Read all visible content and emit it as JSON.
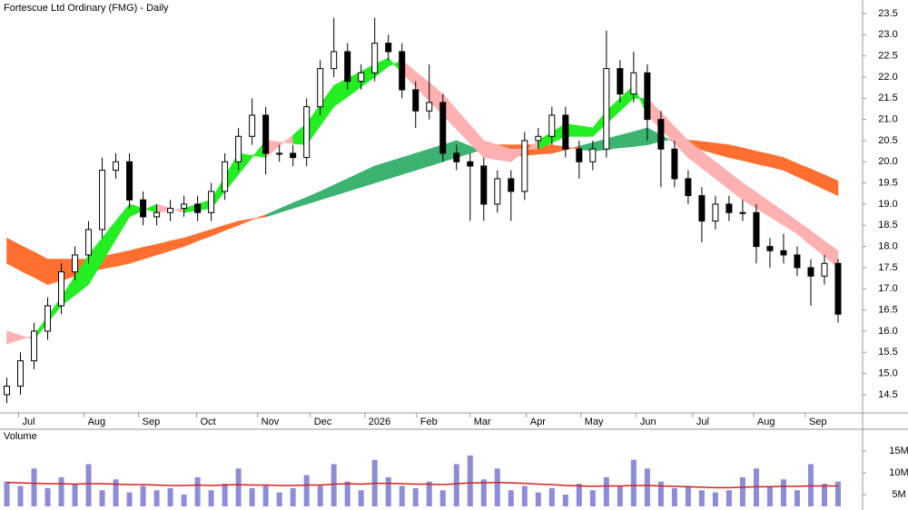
{
  "chart_data": {
    "type": "candlestick",
    "title": "Fortescue Ltd Ordinary (FMG) - Daily",
    "xlim": [
      -0.5,
      62.8
    ],
    "xticks": [
      {
        "value": 0.87,
        "label": "Jul"
      },
      {
        "value": 5.67,
        "label": "Aug"
      },
      {
        "value": 9.67,
        "label": "Sep"
      },
      {
        "value": 13.93,
        "label": "Oct"
      },
      {
        "value": 18.4,
        "label": "Nov"
      },
      {
        "value": 22.27,
        "label": "Dec"
      },
      {
        "value": 26.27,
        "label": "2026"
      },
      {
        "value": 30.07,
        "label": "Feb"
      },
      {
        "value": 34,
        "label": "Mar"
      },
      {
        "value": 38.13,
        "label": "Apr"
      },
      {
        "value": 42.13,
        "label": "May"
      },
      {
        "value": 46.2,
        "label": "Jun"
      },
      {
        "value": 50.33,
        "label": "Jul"
      },
      {
        "value": 54.8,
        "label": "Aug"
      },
      {
        "value": 58.6,
        "label": "Sep"
      }
    ],
    "ylim": [
      14.07,
      23.82
    ],
    "yticks": [
      14.5,
      {
        "value": 15,
        "label": "15.0"
      },
      15.5,
      {
        "value": 16,
        "label": "16.0"
      },
      16.5,
      {
        "value": 17,
        "label": "17.0"
      },
      17.5,
      {
        "value": 18,
        "label": "18.0"
      },
      18.5,
      {
        "value": 19,
        "label": "19.0"
      },
      19.5,
      {
        "value": 20,
        "label": "20.0"
      },
      20.5,
      {
        "value": 21,
        "label": "21.0"
      },
      21.5,
      {
        "value": 22,
        "label": "22.0"
      },
      22.5,
      {
        "value": 23,
        "label": "23.0"
      },
      23.5
    ],
    "open": [
      14.5,
      14.7,
      15.3,
      16.0,
      16.6,
      17.4,
      17.8,
      18.4,
      19.8,
      20.0,
      19.1,
      18.7,
      18.8,
      18.9,
      19.0,
      18.8,
      19.3,
      20.0,
      20.6,
      21.1,
      20.2,
      20.2,
      20.1,
      21.3,
      22.2,
      22.6,
      21.9,
      22.1,
      22.8,
      22.6,
      21.7,
      21.2,
      21.4,
      20.2,
      20.0,
      19.9,
      19.0,
      19.6,
      19.3,
      20.5,
      20.6,
      21.1,
      20.3,
      20.0,
      20.3,
      22.2,
      21.6,
      22.1,
      21.0,
      20.3,
      19.6,
      19.2,
      18.6,
      19.0,
      18.8,
      18.8,
      18.0,
      17.9,
      17.8,
      17.5,
      17.3,
      17.6
    ],
    "high": [
      14.9,
      15.5,
      16.2,
      16.8,
      17.6,
      18.0,
      18.6,
      20.1,
      20.2,
      20.2,
      19.3,
      19.0,
      19.1,
      19.2,
      19.2,
      19.5,
      20.2,
      20.8,
      21.5,
      21.3,
      20.4,
      20.4,
      21.5,
      22.4,
      23.4,
      22.8,
      22.3,
      23.4,
      23.0,
      22.8,
      21.9,
      22.3,
      21.6,
      20.4,
      20.2,
      20.1,
      19.8,
      19.8,
      20.7,
      20.8,
      21.3,
      21.3,
      20.5,
      20.5,
      23.1,
      22.4,
      22.6,
      22.3,
      21.2,
      20.5,
      19.8,
      19.4,
      19.2,
      19.2,
      19.1,
      19.0,
      18.2,
      18.3,
      18.0,
      17.7,
      17.8,
      17.7
    ],
    "low": [
      14.3,
      14.5,
      15.1,
      15.8,
      16.4,
      17.2,
      17.6,
      18.2,
      19.6,
      18.9,
      18.5,
      18.5,
      18.6,
      18.7,
      18.6,
      18.6,
      19.1,
      19.8,
      20.4,
      19.7,
      20.0,
      19.9,
      19.9,
      21.1,
      22.0,
      21.7,
      21.7,
      21.9,
      22.4,
      21.5,
      20.8,
      21.0,
      20.0,
      19.8,
      18.6,
      18.6,
      18.8,
      18.6,
      19.1,
      20.3,
      20.4,
      20.1,
      19.6,
      19.8,
      20.1,
      21.4,
      21.4,
      20.5,
      19.4,
      19.4,
      19.0,
      18.1,
      18.4,
      18.6,
      18.6,
      17.6,
      17.5,
      17.6,
      17.3,
      16.6,
      17.1,
      16.2
    ],
    "close": [
      14.7,
      15.3,
      16.0,
      16.6,
      17.4,
      17.8,
      18.4,
      19.8,
      20.0,
      19.1,
      18.7,
      18.8,
      18.9,
      19.0,
      18.8,
      19.3,
      20.0,
      20.6,
      21.1,
      20.2,
      20.2,
      20.1,
      21.3,
      22.2,
      22.6,
      21.9,
      22.1,
      22.8,
      22.6,
      21.7,
      21.2,
      21.4,
      20.2,
      20.0,
      19.9,
      19.0,
      19.6,
      19.3,
      20.5,
      20.6,
      21.1,
      20.3,
      20.0,
      20.3,
      22.2,
      21.6,
      22.1,
      21.0,
      20.3,
      19.6,
      19.2,
      18.6,
      19.0,
      18.8,
      18.8,
      18.0,
      17.9,
      17.8,
      17.5,
      17.3,
      17.6,
      16.4
    ],
    "up_color": "#ffffff",
    "down_color": "#000000",
    "ribbons": [
      {
        "fast": [
          17.6,
          17.43,
          17.27,
          17.1,
          17.2,
          17.3,
          17.4,
          17.47,
          17.53,
          17.6,
          17.7,
          17.8,
          17.9,
          18.0,
          18.13,
          18.25,
          18.38,
          18.5,
          18.63,
          18.75,
          18.89,
          19.03,
          19.16,
          19.3,
          19.45,
          19.6,
          19.75,
          19.9,
          20.0,
          20.1,
          20.2,
          20.3,
          20.4,
          20.5,
          20.37,
          20.23,
          20.1,
          20.13,
          20.15,
          20.18,
          20.2,
          20.28,
          20.37,
          20.45,
          20.54,
          20.63,
          20.71,
          20.8,
          20.63,
          20.45,
          20.36,
          20.28,
          20.19,
          20.1,
          20.03,
          19.95,
          19.88,
          19.8,
          19.65,
          19.5,
          19.35,
          19.2
        ],
        "slow": [
          18.2,
          18.03,
          17.87,
          17.7,
          17.7,
          17.7,
          17.7,
          17.77,
          17.83,
          17.9,
          17.98,
          18.05,
          18.13,
          18.2,
          18.3,
          18.4,
          18.5,
          18.6,
          18.65,
          18.7,
          18.8,
          18.9,
          19.0,
          19.1,
          19.2,
          19.3,
          19.4,
          19.5,
          19.6,
          19.7,
          19.8,
          19.9,
          20.0,
          20.1,
          20.2,
          20.3,
          20.4,
          20.4,
          20.4,
          20.4,
          20.4,
          20.35,
          20.3,
          20.25,
          20.29,
          20.33,
          20.36,
          20.4,
          20.48,
          20.55,
          20.51,
          20.48,
          20.44,
          20.4,
          20.33,
          20.25,
          20.18,
          20.1,
          19.96,
          19.83,
          19.69,
          19.55
        ],
        "up_color": "#3cb371",
        "down_color": "#ff7030"
      },
      {
        "fast": [
          15.7,
          15.8,
          15.9,
          16.35,
          16.8,
          17.3,
          17.8,
          18.2,
          18.6,
          19.0,
          18.9,
          18.8,
          18.85,
          18.9,
          19.0,
          19.1,
          19.65,
          20.2,
          20.15,
          20.1,
          20.37,
          20.63,
          20.9,
          21.35,
          21.8,
          21.97,
          22.13,
          22.3,
          22.45,
          22.1,
          21.77,
          21.43,
          21.1,
          20.77,
          20.43,
          20.1,
          20.05,
          20.0,
          20.25,
          20.5,
          20.7,
          20.9,
          20.85,
          20.8,
          21.2,
          21.5,
          21.8,
          21.1,
          20.77,
          20.43,
          20.1,
          19.85,
          19.6,
          19.35,
          19.1,
          18.9,
          18.7,
          18.5,
          18.3,
          18.03,
          17.77,
          17.5
        ],
        "slow": [
          16.0,
          15.9,
          15.8,
          16.2,
          16.6,
          16.85,
          17.1,
          17.63,
          18.17,
          18.7,
          18.85,
          19.0,
          18.9,
          18.8,
          18.85,
          18.9,
          19.3,
          19.7,
          20.1,
          20.5,
          20.47,
          20.43,
          20.4,
          20.85,
          21.3,
          21.53,
          21.77,
          22.0,
          22.25,
          22.4,
          22.13,
          21.87,
          21.6,
          21.23,
          20.87,
          20.5,
          20.4,
          20.3,
          20.3,
          20.3,
          20.45,
          20.6,
          20.6,
          20.6,
          20.9,
          21.2,
          21.5,
          21.5,
          21.17,
          20.83,
          20.5,
          20.25,
          20.0,
          19.75,
          19.5,
          19.28,
          19.05,
          18.83,
          18.6,
          18.37,
          18.13,
          17.9
        ],
        "up_color": "#22ee22",
        "down_color": "#ffb0b0"
      }
    ],
    "volume": {
      "title": "Volume",
      "color": "#8c8cd9",
      "ma_color": "#d42020",
      "ylim": [
        2300000,
        19600000
      ],
      "yticks": [
        {
          "value": 5000000,
          "label": "5M"
        },
        {
          "value": 10000000,
          "label": "10M"
        },
        {
          "value": 15000000,
          "label": "15M"
        }
      ],
      "values": [
        8000000,
        7000000,
        11000000,
        6500000,
        9000000,
        7500000,
        12000000,
        6000000,
        8500000,
        5500000,
        7000000,
        6000000,
        6500000,
        5000000,
        9000000,
        6000000,
        7500000,
        11000000,
        6500000,
        7000000,
        5500000,
        6500000,
        9500000,
        7000000,
        12000000,
        8000000,
        6000000,
        13000000,
        9000000,
        7000000,
        6500000,
        8000000,
        6000000,
        12000000,
        14000000,
        8500000,
        11000000,
        6000000,
        7000000,
        5500000,
        6500000,
        5000000,
        7500000,
        6000000,
        9000000,
        7000000,
        13000000,
        11000000,
        8000000,
        6500000,
        7000000,
        6000000,
        5500000,
        6000000,
        9000000,
        11000000,
        7000000,
        8500000,
        6000000,
        12000000,
        7500000,
        8000000
      ],
      "ma": [
        7800000,
        7700000,
        7600000,
        7500000,
        7500000,
        7400000,
        7500000,
        7500000,
        7400000,
        7300000,
        7300000,
        7200000,
        7100000,
        7100000,
        7200000,
        7100000,
        7200000,
        7300000,
        7200000,
        7200000,
        7100000,
        7100000,
        7200000,
        7200000,
        7400000,
        7500000,
        7400000,
        7600000,
        7600000,
        7500000,
        7400000,
        7400000,
        7300000,
        7500000,
        7700000,
        7700000,
        7800000,
        7700000,
        7600000,
        7400000,
        7300000,
        7100000,
        7000000,
        6900000,
        7000000,
        7000000,
        7100000,
        7100000,
        7000000,
        6900000,
        6800000,
        6700000,
        6600000,
        6600000,
        6700000,
        6800000,
        6800000,
        6900000,
        6900000,
        7000000,
        7000000,
        7000000
      ]
    }
  }
}
